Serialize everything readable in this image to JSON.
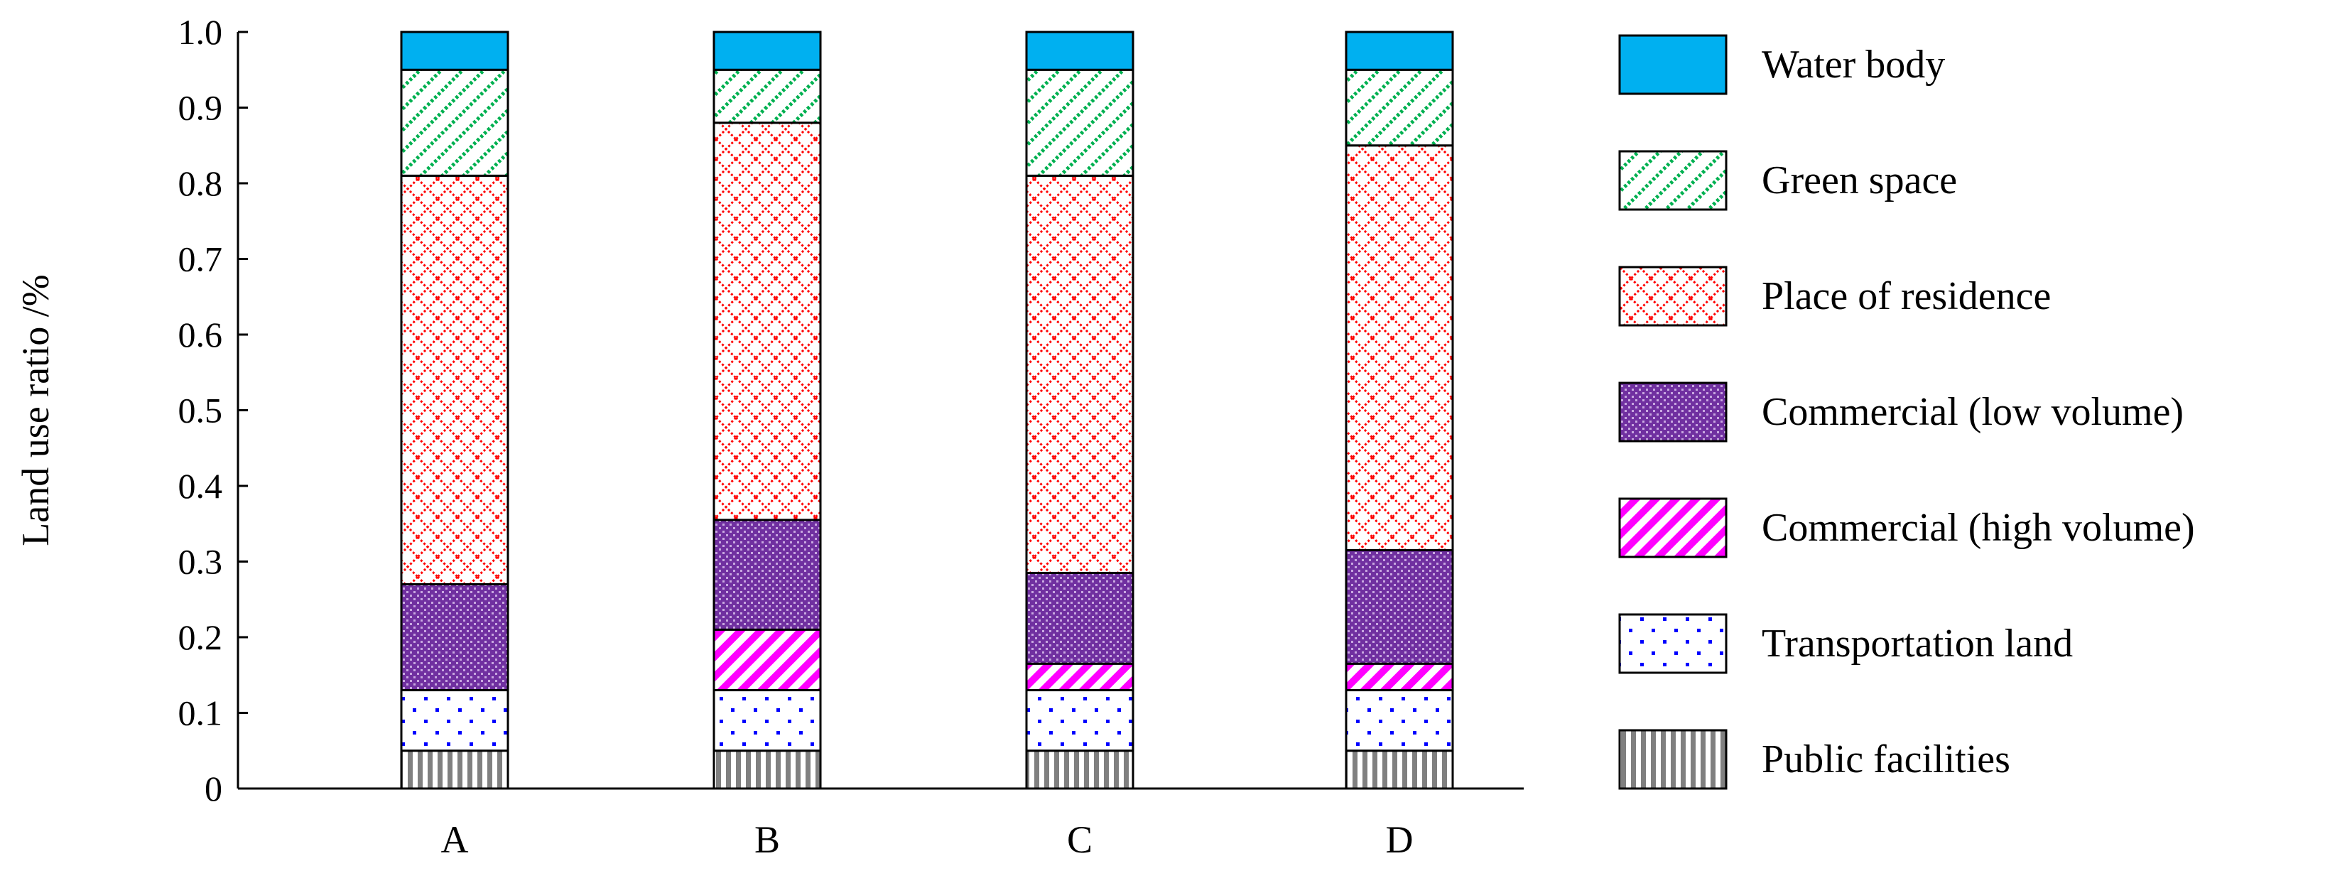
{
  "chart_data": {
    "type": "bar",
    "stacked": true,
    "title": "",
    "xlabel": "",
    "ylabel": "Land use ratio /%",
    "ylim": [
      0,
      1.0
    ],
    "yticks": [
      "0",
      "0.1",
      "0.2",
      "0.3",
      "0.4",
      "0.5",
      "0.6",
      "0.7",
      "0.8",
      "0.9",
      "1.0"
    ],
    "grid": false,
    "legend_position": "right",
    "categories": [
      "A",
      "B",
      "C",
      "D"
    ],
    "series": [
      {
        "name": "Public facilities",
        "color": "#808080",
        "pattern": "vertical-stripes",
        "values": [
          0.05,
          0.05,
          0.05,
          0.05
        ]
      },
      {
        "name": "Transportation land",
        "color": "#0000ff",
        "pattern": "dots",
        "values": [
          0.08,
          0.08,
          0.08,
          0.08
        ]
      },
      {
        "name": "Commercial (high volume)",
        "color": "#ff00ff",
        "pattern": "diagonal-stripes",
        "values": [
          0.0,
          0.08,
          0.035,
          0.035
        ]
      },
      {
        "name": "Commercial (low volume)",
        "color": "#7030a0",
        "pattern": "dense-dots",
        "values": [
          0.14,
          0.145,
          0.12,
          0.15
        ]
      },
      {
        "name": "Place of residence",
        "color": "#ff0000",
        "pattern": "crosshatch",
        "values": [
          0.54,
          0.525,
          0.525,
          0.535
        ]
      },
      {
        "name": "Green space",
        "color": "#00b050",
        "pattern": "diagonal-hatch",
        "values": [
          0.14,
          0.07,
          0.14,
          0.1
        ]
      },
      {
        "name": "Water body",
        "color": "#00b0f0",
        "pattern": "solid",
        "values": [
          0.05,
          0.05,
          0.05,
          0.05
        ]
      }
    ],
    "legend_order": [
      "Water body",
      "Green space",
      "Place of residence",
      "Commercial (low volume)",
      "Commercial (high volume)",
      "Transportation land",
      "Public facilities"
    ]
  }
}
